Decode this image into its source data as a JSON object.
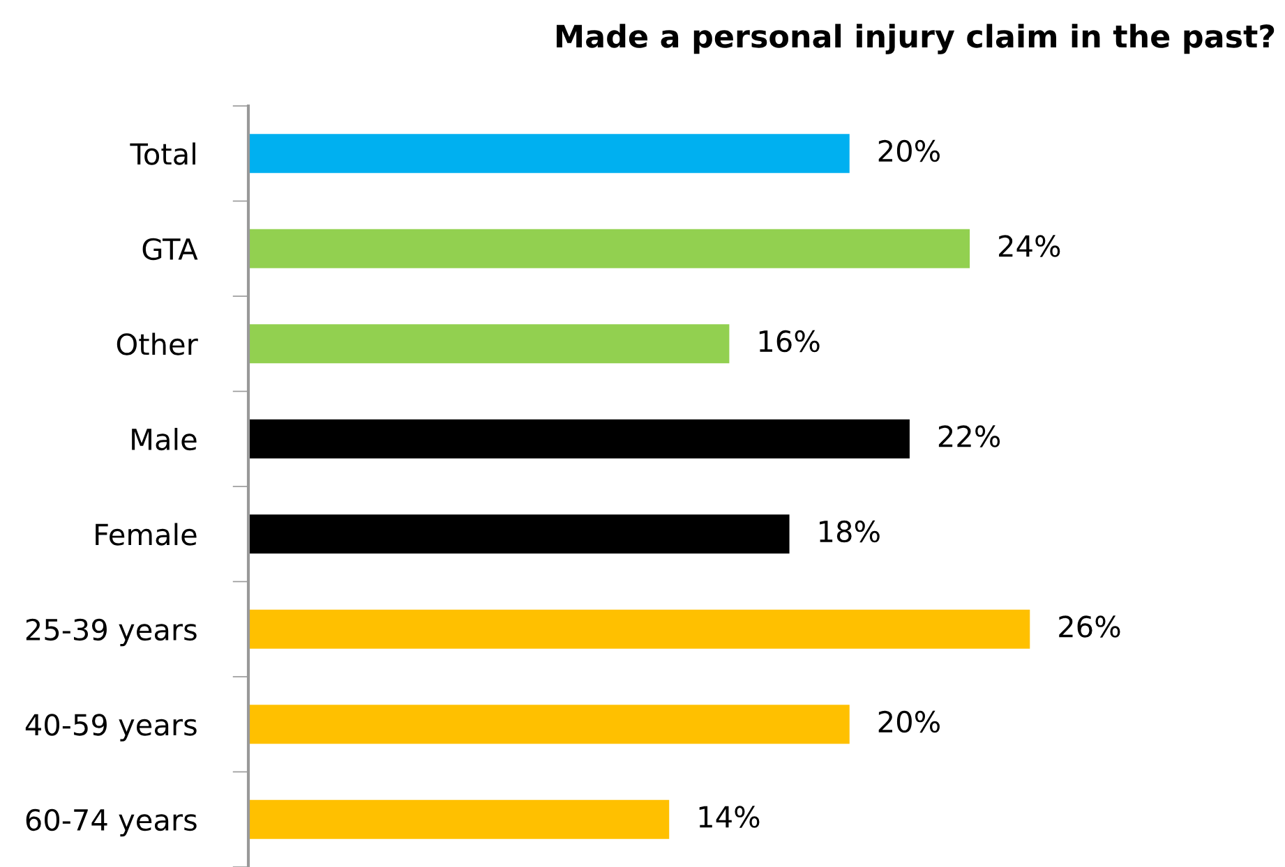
{
  "chart_data": {
    "type": "bar",
    "orientation": "horizontal",
    "title": "Made a personal injury claim in the past?",
    "categories": [
      "Total",
      "GTA",
      "Other",
      "Male",
      "Female",
      "25-39 years",
      "40-59 years",
      "60-74 years"
    ],
    "values": [
      20,
      24,
      16,
      22,
      18,
      26,
      20,
      14
    ],
    "colors": [
      "#00b0f0",
      "#92d050",
      "#92d050",
      "#000000",
      "#000000",
      "#ffc000",
      "#ffc000",
      "#ffc000"
    ],
    "value_labels": [
      "20%",
      "24%",
      "16%",
      "22%",
      "18%",
      "26%",
      "20%",
      "14%"
    ],
    "grid": false,
    "legend": false
  }
}
